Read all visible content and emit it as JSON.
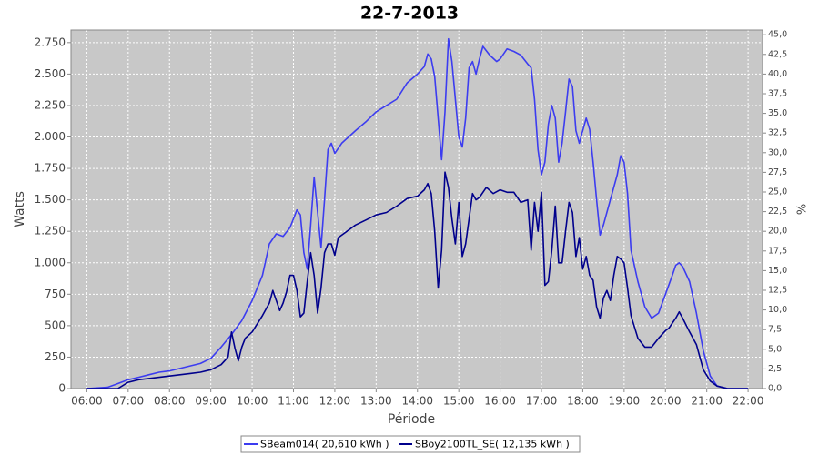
{
  "chart_data": {
    "type": "line",
    "title": "22-7-2013",
    "x_label": "Période",
    "y_label": "Watts",
    "y2_label": "%",
    "grid": true,
    "legend": "bottom",
    "xlim": [
      "05:37",
      "22:21"
    ],
    "xticks": [
      "06:00",
      "07:00",
      "08:00",
      "09:00",
      "10:00",
      "11:00",
      "12:00",
      "13:00",
      "14:00",
      "15:00",
      "16:00",
      "17:00",
      "18:00",
      "19:00",
      "20:00",
      "21:00",
      "22:00"
    ],
    "ylim": [
      0,
      2850
    ],
    "yticks": [
      0,
      250,
      500,
      750,
      {
        "value": 1000,
        "label": "1.000"
      },
      {
        "value": 1250,
        "label": "1.250"
      },
      {
        "value": 1500,
        "label": "1.500"
      },
      {
        "value": 1750,
        "label": "1.750"
      },
      {
        "value": 2000,
        "label": "2.000"
      },
      {
        "value": 2250,
        "label": "2.250"
      },
      {
        "value": 2500,
        "label": "2.500"
      },
      {
        "value": 2750,
        "label": "2.750"
      }
    ],
    "y2lim": [
      0,
      45.6
    ],
    "y2ticks": [
      {
        "value": 0,
        "label": "0,0"
      },
      {
        "value": 2.5,
        "label": "2,5"
      },
      {
        "value": 5,
        "label": "5,0"
      },
      {
        "value": 7.5,
        "label": "7,5"
      },
      {
        "value": 10,
        "label": "10,0"
      },
      {
        "value": 12.5,
        "label": "12,5"
      },
      {
        "value": 15,
        "label": "15,0"
      },
      {
        "value": 17.5,
        "label": "17,5"
      },
      {
        "value": 20,
        "label": "20,0"
      },
      {
        "value": 22.5,
        "label": "22,5"
      },
      {
        "value": 25,
        "label": "25,0"
      },
      {
        "value": 27.5,
        "label": "27,5"
      },
      {
        "value": 30,
        "label": "30,0"
      },
      {
        "value": 32.5,
        "label": "32,5"
      },
      {
        "value": 35,
        "label": "35,0"
      },
      {
        "value": 37.5,
        "label": "37,5"
      },
      {
        "value": 40,
        "label": "40,0"
      },
      {
        "value": 42.5,
        "label": "42,5"
      },
      {
        "value": 45,
        "label": "45,0"
      }
    ],
    "series": [
      {
        "name": "SBeam014( 20,610 kWh )",
        "color": "#3c3cf0",
        "x": [
          "06:00",
          "06:30",
          "06:45",
          "07:00",
          "07:15",
          "07:30",
          "07:45",
          "08:00",
          "08:15",
          "08:30",
          "08:45",
          "09:00",
          "09:15",
          "09:30",
          "09:45",
          "10:00",
          "10:15",
          "10:25",
          "10:35",
          "10:45",
          "10:55",
          "11:00",
          "11:05",
          "11:10",
          "11:15",
          "11:20",
          "11:25",
          "11:30",
          "11:35",
          "11:40",
          "11:45",
          "11:50",
          "11:55",
          "12:00",
          "12:10",
          "12:30",
          "12:45",
          "13:00",
          "13:15",
          "13:30",
          "13:45",
          "14:00",
          "14:10",
          "14:15",
          "14:20",
          "14:25",
          "14:30",
          "14:35",
          "14:40",
          "14:45",
          "14:50",
          "14:55",
          "15:00",
          "15:05",
          "15:10",
          "15:15",
          "15:20",
          "15:25",
          "15:30",
          "15:35",
          "15:45",
          "15:55",
          "16:00",
          "16:10",
          "16:20",
          "16:30",
          "16:40",
          "16:45",
          "16:50",
          "16:55",
          "17:00",
          "17:05",
          "17:10",
          "17:15",
          "17:20",
          "17:25",
          "17:30",
          "17:35",
          "17:40",
          "17:45",
          "17:50",
          "17:55",
          "18:00",
          "18:05",
          "18:10",
          "18:15",
          "18:20",
          "18:25",
          "18:30",
          "18:40",
          "18:50",
          "18:55",
          "19:00",
          "19:05",
          "19:10",
          "19:20",
          "19:30",
          "19:40",
          "19:50",
          "20:00",
          "20:10",
          "20:15",
          "20:20",
          "20:25",
          "20:35",
          "20:45",
          "20:55",
          "21:05",
          "21:15",
          "21:30",
          "22:00"
        ],
        "values": [
          0,
          10,
          40,
          70,
          90,
          110,
          130,
          140,
          160,
          180,
          200,
          240,
          330,
          430,
          540,
          700,
          900,
          1150,
          1230,
          1210,
          1280,
          1350,
          1420,
          1380,
          1080,
          950,
          1300,
          1680,
          1400,
          1120,
          1500,
          1900,
          1950,
          1870,
          1950,
          2050,
          2120,
          2200,
          2250,
          2300,
          2430,
          2500,
          2560,
          2660,
          2620,
          2480,
          2150,
          1820,
          2200,
          2780,
          2600,
          2300,
          2000,
          1920,
          2150,
          2550,
          2600,
          2500,
          2620,
          2720,
          2650,
          2600,
          2620,
          2700,
          2680,
          2650,
          2580,
          2550,
          2300,
          1900,
          1700,
          1800,
          2100,
          2250,
          2150,
          1800,
          1950,
          2200,
          2460,
          2400,
          2050,
          1950,
          2050,
          2150,
          2060,
          1800,
          1500,
          1220,
          1300,
          1500,
          1700,
          1850,
          1800,
          1550,
          1100,
          850,
          650,
          560,
          600,
          750,
          900,
          980,
          1000,
          970,
          850,
          600,
          300,
          100,
          20,
          0,
          0
        ]
      },
      {
        "name": "SBoy2100TL_SE( 12,135 kWh )",
        "color": "#00008c",
        "x": [
          "06:00",
          "06:45",
          "07:00",
          "07:15",
          "07:30",
          "07:45",
          "08:00",
          "08:15",
          "08:30",
          "08:45",
          "09:00",
          "09:15",
          "09:25",
          "09:30",
          "09:35",
          "09:40",
          "09:45",
          "09:50",
          "10:00",
          "10:15",
          "10:25",
          "10:30",
          "10:35",
          "10:40",
          "10:45",
          "10:50",
          "10:55",
          "11:00",
          "11:05",
          "11:10",
          "11:15",
          "11:20",
          "11:25",
          "11:30",
          "11:35",
          "11:40",
          "11:45",
          "11:50",
          "11:55",
          "12:00",
          "12:05",
          "12:15",
          "12:30",
          "12:45",
          "13:00",
          "13:15",
          "13:30",
          "13:45",
          "14:00",
          "14:10",
          "14:15",
          "14:20",
          "14:25",
          "14:30",
          "14:35",
          "14:40",
          "14:45",
          "14:50",
          "14:55",
          "15:00",
          "15:05",
          "15:10",
          "15:15",
          "15:20",
          "15:25",
          "15:30",
          "15:40",
          "15:50",
          "16:00",
          "16:10",
          "16:20",
          "16:30",
          "16:40",
          "16:45",
          "16:50",
          "16:55",
          "17:00",
          "17:05",
          "17:10",
          "17:15",
          "17:20",
          "17:25",
          "17:30",
          "17:35",
          "17:40",
          "17:45",
          "17:50",
          "17:55",
          "18:00",
          "18:05",
          "18:10",
          "18:15",
          "18:20",
          "18:25",
          "18:30",
          "18:35",
          "18:40",
          "18:45",
          "18:50",
          "18:55",
          "19:00",
          "19:05",
          "19:10",
          "19:20",
          "19:30",
          "19:40",
          "19:50",
          "20:00",
          "20:05",
          "20:15",
          "20:20",
          "20:25",
          "20:35",
          "20:45",
          "20:55",
          "21:05",
          "21:15",
          "21:30",
          "22:00"
        ],
        "values": [
          0,
          0,
          50,
          70,
          80,
          90,
          100,
          110,
          120,
          130,
          150,
          190,
          250,
          450,
          320,
          220,
          330,
          400,
          450,
          580,
          680,
          780,
          700,
          620,
          680,
          770,
          900,
          900,
          780,
          570,
          600,
          850,
          1080,
          900,
          600,
          800,
          1080,
          1150,
          1150,
          1060,
          1200,
          1240,
          1300,
          1340,
          1380,
          1400,
          1450,
          1510,
          1530,
          1580,
          1630,
          1550,
          1250,
          800,
          1100,
          1720,
          1600,
          1350,
          1150,
          1480,
          1050,
          1150,
          1350,
          1550,
          1500,
          1520,
          1600,
          1550,
          1580,
          1560,
          1560,
          1480,
          1500,
          1100,
          1480,
          1250,
          1560,
          820,
          850,
          1100,
          1450,
          1000,
          1000,
          1250,
          1480,
          1400,
          1050,
          1200,
          950,
          1050,
          900,
          860,
          650,
          560,
          720,
          780,
          700,
          900,
          1050,
          1030,
          1000,
          800,
          580,
          400,
          330,
          330,
          400,
          460,
          480,
          560,
          610,
          560,
          450,
          350,
          150,
          60,
          20,
          0,
          0
        ]
      }
    ]
  }
}
